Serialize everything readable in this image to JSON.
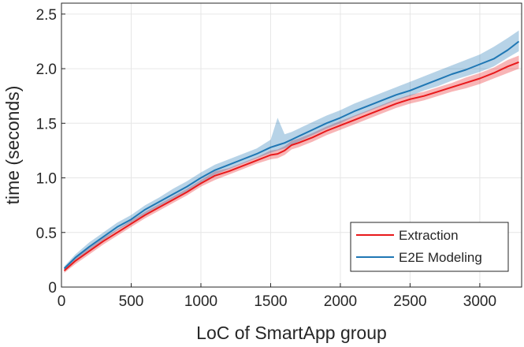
{
  "chart_data": {
    "type": "line",
    "title": "",
    "xlabel": "LoC of SmartApp group",
    "ylabel": "time (seconds)",
    "xlim": [
      0,
      3300
    ],
    "ylim": [
      0,
      2.6
    ],
    "xticks": [
      0,
      500,
      1000,
      1500,
      2000,
      2500,
      3000
    ],
    "yticks": [
      0,
      0.5,
      1.0,
      1.5,
      2.0,
      2.5
    ],
    "xtick_labels": [
      "0",
      "500",
      "1000",
      "1500",
      "2000",
      "2500",
      "3000"
    ],
    "ytick_labels": [
      "0",
      "0.5",
      "1.0",
      "1.5",
      "2.0",
      "2.5"
    ],
    "grid": true,
    "legend_position": "bottom-right",
    "colors": {
      "Extraction": "#e8191b",
      "E2E Modeling": "#1f77b4"
    },
    "x": [
      20,
      100,
      200,
      300,
      400,
      500,
      600,
      700,
      800,
      900,
      1000,
      1100,
      1200,
      1300,
      1400,
      1500,
      1550,
      1600,
      1650,
      1700,
      1800,
      1900,
      2000,
      2100,
      2200,
      2300,
      2400,
      2500,
      2600,
      2700,
      2800,
      2900,
      3000,
      3100,
      3200,
      3280
    ],
    "series": [
      {
        "name": "Extraction",
        "values": [
          0.15,
          0.24,
          0.33,
          0.42,
          0.5,
          0.58,
          0.66,
          0.73,
          0.8,
          0.87,
          0.95,
          1.02,
          1.06,
          1.11,
          1.16,
          1.21,
          1.22,
          1.25,
          1.3,
          1.32,
          1.37,
          1.43,
          1.48,
          1.53,
          1.58,
          1.63,
          1.68,
          1.72,
          1.75,
          1.79,
          1.83,
          1.87,
          1.91,
          1.96,
          2.02,
          2.06
        ],
        "band_lower": [
          0.13,
          0.21,
          0.3,
          0.39,
          0.47,
          0.55,
          0.63,
          0.7,
          0.77,
          0.84,
          0.92,
          0.98,
          1.03,
          1.08,
          1.13,
          1.17,
          1.18,
          1.21,
          1.26,
          1.28,
          1.33,
          1.39,
          1.44,
          1.49,
          1.54,
          1.59,
          1.64,
          1.68,
          1.71,
          1.75,
          1.79,
          1.82,
          1.86,
          1.91,
          1.96,
          2.0
        ],
        "band_upper": [
          0.17,
          0.27,
          0.36,
          0.45,
          0.53,
          0.61,
          0.69,
          0.76,
          0.83,
          0.9,
          0.98,
          1.06,
          1.09,
          1.14,
          1.19,
          1.25,
          1.26,
          1.29,
          1.34,
          1.36,
          1.41,
          1.47,
          1.52,
          1.57,
          1.62,
          1.67,
          1.72,
          1.76,
          1.79,
          1.83,
          1.87,
          1.92,
          1.96,
          2.01,
          2.08,
          2.12
        ]
      },
      {
        "name": "E2E Modeling",
        "values": [
          0.17,
          0.27,
          0.37,
          0.46,
          0.55,
          0.62,
          0.71,
          0.78,
          0.85,
          0.92,
          1.0,
          1.07,
          1.12,
          1.17,
          1.22,
          1.28,
          1.3,
          1.32,
          1.35,
          1.38,
          1.44,
          1.5,
          1.55,
          1.61,
          1.66,
          1.71,
          1.76,
          1.8,
          1.85,
          1.9,
          1.95,
          1.99,
          2.04,
          2.09,
          2.17,
          2.25
        ],
        "band_lower": [
          0.15,
          0.24,
          0.34,
          0.43,
          0.52,
          0.59,
          0.67,
          0.74,
          0.81,
          0.88,
          0.96,
          1.03,
          1.08,
          1.13,
          1.18,
          1.23,
          1.25,
          1.27,
          1.3,
          1.33,
          1.39,
          1.45,
          1.5,
          1.56,
          1.61,
          1.66,
          1.71,
          1.75,
          1.8,
          1.84,
          1.89,
          1.93,
          1.97,
          2.02,
          2.1,
          2.16
        ],
        "band_upper": [
          0.19,
          0.3,
          0.41,
          0.5,
          0.59,
          0.66,
          0.75,
          0.82,
          0.9,
          0.97,
          1.05,
          1.12,
          1.17,
          1.22,
          1.27,
          1.35,
          1.55,
          1.4,
          1.42,
          1.45,
          1.51,
          1.57,
          1.62,
          1.68,
          1.73,
          1.78,
          1.83,
          1.88,
          1.93,
          1.98,
          2.03,
          2.08,
          2.13,
          2.2,
          2.28,
          2.35
        ]
      }
    ]
  }
}
